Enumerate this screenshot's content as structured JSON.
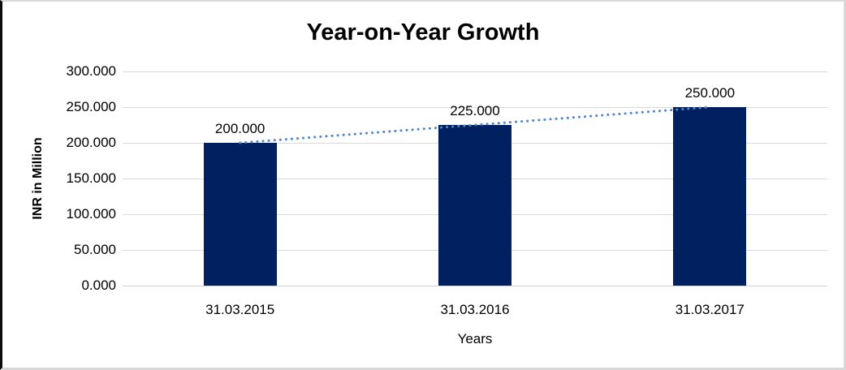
{
  "chart_data": {
    "type": "bar",
    "title": "Year-on-Year Growth",
    "xlabel": "Years",
    "ylabel": "INR in Million",
    "categories": [
      "31.03.2015",
      "31.03.2016",
      "31.03.2017"
    ],
    "values": [
      200,
      225,
      250
    ],
    "value_labels": [
      "200.000",
      "225.000",
      "250.000"
    ],
    "ylim": [
      0,
      300
    ],
    "yticks": [
      0,
      50,
      100,
      150,
      200,
      250,
      300
    ],
    "ytick_labels": [
      "0.000",
      "50.000",
      "100.000",
      "150.000",
      "200.000",
      "250.000",
      "300.000"
    ],
    "grid": true,
    "legend": "none",
    "trendline": {
      "type": "linear",
      "style": "dotted"
    },
    "colors": {
      "bar": "#002060",
      "trendline": "#4f87c7",
      "gridline": "#d9d9d9",
      "axis_line": "#d0cece",
      "text": "#000000",
      "background": "#ffffff",
      "border": "#d9d9d9"
    }
  }
}
